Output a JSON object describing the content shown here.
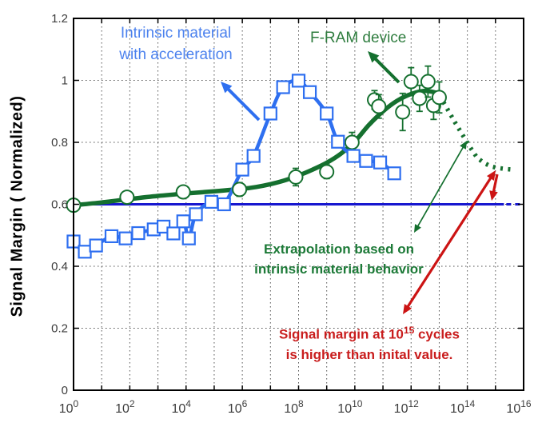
{
  "chart_data": {
    "type": "line",
    "title": "",
    "ylabel": "Signal Margin ( Normalized)",
    "xlabel": "",
    "x_scale": "log10",
    "x_exponent_range": [
      0,
      16
    ],
    "ylim": [
      0,
      1.2
    ],
    "y_ticks": [
      0,
      0.2,
      0.4,
      0.6,
      0.8,
      1,
      1.2
    ],
    "y_tick_labels": [
      "0",
      "0.2",
      "0.4",
      "0.6",
      "0.8",
      "1",
      "1.2"
    ],
    "x_tick_label_exponents": [
      0,
      2,
      4,
      6,
      8,
      10,
      12,
      14,
      16
    ],
    "x_tick_base": "10",
    "grid": true,
    "grid_color": "#4d4d4d",
    "frame_color": "#000000",
    "tick_label_color": "#3d3d3d",
    "reference_line": {
      "name": "initial-signal-margin-level",
      "y": 0.6,
      "solid_to_exponent": 15.3,
      "dashed_to_exponent": 16,
      "color": "#1717cf"
    },
    "series": [
      {
        "name": "Intrinsic material with acceleration",
        "marker": "square",
        "marker_size": 15,
        "color": "#2e6ff0",
        "line_width": 4.5,
        "points": [
          [
            0,
            0.48
          ],
          [
            0.4,
            0.447
          ],
          [
            0.8,
            0.467
          ],
          [
            1.35,
            0.497
          ],
          [
            1.85,
            0.49
          ],
          [
            2.3,
            0.507
          ],
          [
            2.85,
            0.519
          ],
          [
            3.2,
            0.528
          ],
          [
            3.55,
            0.506
          ],
          [
            3.9,
            0.545
          ],
          [
            4.1,
            0.49
          ],
          [
            4.35,
            0.568
          ],
          [
            4.9,
            0.608
          ],
          [
            5.35,
            0.6
          ],
          [
            6.0,
            0.712
          ],
          [
            6.4,
            0.756
          ],
          [
            7.0,
            0.893
          ],
          [
            7.45,
            0.978
          ],
          [
            8.0,
            0.999
          ],
          [
            8.4,
            0.962
          ],
          [
            9.0,
            0.893
          ],
          [
            9.4,
            0.802
          ],
          [
            9.95,
            0.756
          ],
          [
            10.4,
            0.74
          ],
          [
            10.9,
            0.735
          ],
          [
            11.4,
            0.7
          ]
        ]
      },
      {
        "name": "F-RAM device (smoothed trend)",
        "marker": "none",
        "color": "#15702f",
        "line_width": 5.5,
        "points": [
          [
            0,
            0.597
          ],
          [
            1,
            0.606
          ],
          [
            2,
            0.617
          ],
          [
            3,
            0.627
          ],
          [
            4,
            0.635
          ],
          [
            5,
            0.642
          ],
          [
            6,
            0.65
          ],
          [
            6.5,
            0.656
          ],
          [
            7,
            0.665
          ],
          [
            7.5,
            0.677
          ],
          [
            8,
            0.693
          ],
          [
            8.5,
            0.712
          ],
          [
            9,
            0.734
          ],
          [
            9.5,
            0.763
          ],
          [
            10,
            0.803
          ],
          [
            10.5,
            0.856
          ],
          [
            11,
            0.9
          ],
          [
            11.5,
            0.934
          ],
          [
            12,
            0.956
          ],
          [
            12.5,
            0.966
          ],
          [
            13,
            0.958
          ]
        ]
      },
      {
        "name": "F-RAM device (measured points with error bars)",
        "marker": "circle",
        "marker_size": 8.5,
        "color": "#15702f",
        "line_width": 2,
        "points_with_error": [
          [
            0,
            0.597,
            0.02
          ],
          [
            1.9,
            0.623,
            0.015
          ],
          [
            3.9,
            0.64,
            0.015
          ],
          [
            5.9,
            0.648,
            0.022
          ],
          [
            7.9,
            0.688,
            0.028
          ],
          [
            9.0,
            0.705,
            0.022
          ],
          [
            9.9,
            0.8,
            0.032
          ],
          [
            10.7,
            0.937,
            0.03
          ],
          [
            10.85,
            0.916,
            0.038
          ],
          [
            11.7,
            0.898,
            0.06
          ],
          [
            12.0,
            0.996,
            0.045
          ],
          [
            12.3,
            0.942,
            0.042
          ],
          [
            12.6,
            0.996,
            0.05
          ],
          [
            12.8,
            0.919,
            0.045
          ],
          [
            13.0,
            0.945,
            0.05
          ]
        ]
      },
      {
        "name": "Extrapolation based on intrinsic material behavior (dotted)",
        "marker": "none",
        "style": "dotted",
        "color": "#15702f",
        "line_width": 5.5,
        "points": [
          [
            13.15,
            0.93
          ],
          [
            13.35,
            0.898
          ],
          [
            13.55,
            0.866
          ],
          [
            13.75,
            0.836
          ],
          [
            13.95,
            0.806
          ],
          [
            14.15,
            0.777
          ],
          [
            14.35,
            0.75
          ],
          [
            14.6,
            0.733
          ],
          [
            14.85,
            0.722
          ],
          [
            15.1,
            0.717
          ],
          [
            15.35,
            0.714
          ],
          [
            15.6,
            0.712
          ]
        ]
      }
    ],
    "annotations": {
      "intrinsic": {
        "line1": "Intrinsic material",
        "line2": "with acceleration",
        "color": "#4c82ee"
      },
      "fram": {
        "text": "F-RAM device",
        "color": "#2f7d3f"
      },
      "extrapolation": {
        "line1": "Extrapolation based on",
        "line2": "intrinsic material behavior",
        "color": "#1d7a38"
      },
      "red_note": {
        "line1_pre": "Signal margin at 10",
        "line1_sup": "15",
        "line1_post": " cycles",
        "line2": "is higher than inital value.",
        "color": "#c91d1d"
      }
    },
    "arrows": [
      {
        "name": "blue-callout-arrow",
        "color": "#2e6ff0",
        "width": 4,
        "from": [
          324,
          150
        ],
        "to": [
          276,
          102
        ],
        "heads": [
          "to"
        ],
        "head_size": 14
      },
      {
        "name": "green-callout-arrow",
        "color": "#15702f",
        "width": 4,
        "from": [
          499,
          103
        ],
        "to": [
          460,
          64
        ],
        "heads": [
          "to"
        ],
        "head_size": 14
      },
      {
        "name": "green-extrapolation-pointer",
        "color": "#15702f",
        "width": 1.7,
        "from": [
          518,
          291
        ],
        "to": [
          584,
          176
        ],
        "heads": [
          "from",
          "to"
        ],
        "head_size": 10
      },
      {
        "name": "red-difference-arrow",
        "color": "#cc1414",
        "width": 3.2,
        "from": [
          504,
          393
        ],
        "to": [
          620,
          213
        ],
        "heads": [
          "from",
          "to"
        ],
        "head_size": 12
      },
      {
        "name": "red-difference-arrow-down",
        "color": "#cc1414",
        "width": 3.2,
        "from": [
          622,
          218
        ],
        "to": [
          615,
          251
        ],
        "heads": [
          "to"
        ],
        "head_size": 12
      }
    ],
    "legend_position": "none"
  }
}
